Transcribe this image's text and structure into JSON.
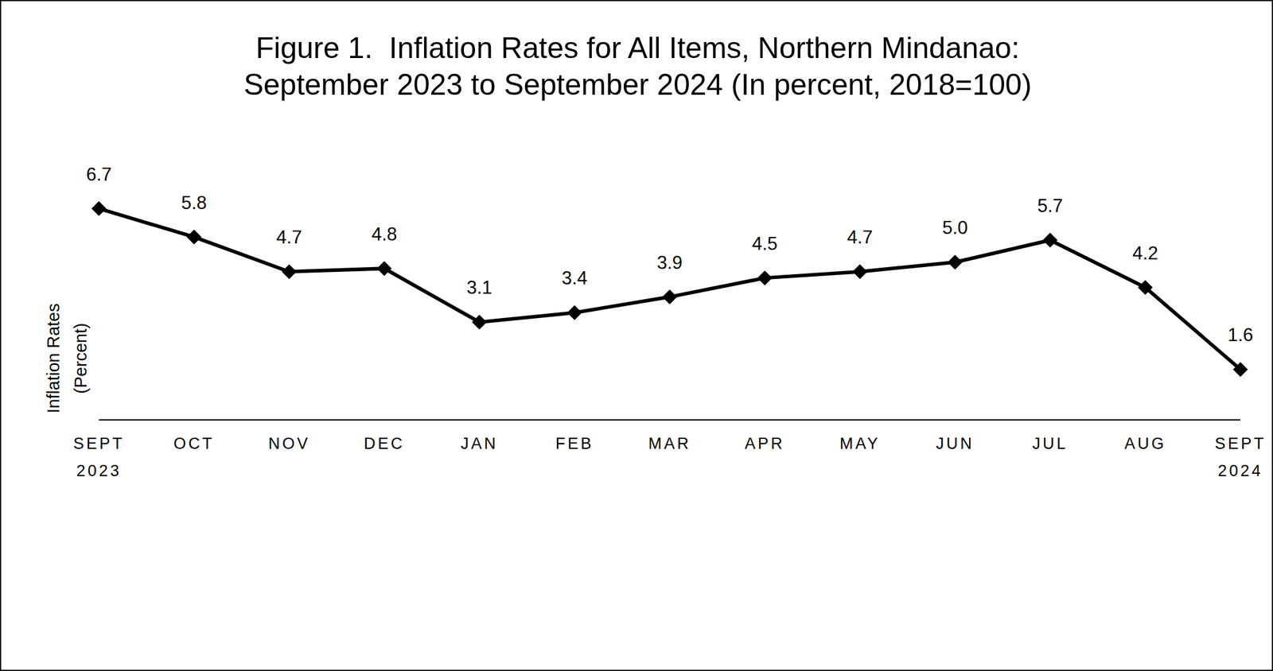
{
  "chart_data": {
    "type": "line",
    "title": "Figure 1.  Inflation Rates for All Items, Northern Mindanao:\nSeptember 2023 to September 2024 (In percent, 2018=100)",
    "ylabel": "Inflation Rates\n(Percent)",
    "categories": [
      "SEPT 2023",
      "OCT",
      "NOV",
      "DEC",
      "JAN",
      "FEB",
      "MAR",
      "APR",
      "MAY",
      "JUN",
      "JUL",
      "AUG",
      "SEPT 2024"
    ],
    "values": [
      6.7,
      5.8,
      4.7,
      4.8,
      3.1,
      3.4,
      3.9,
      4.5,
      4.7,
      5.0,
      5.7,
      4.2,
      1.6
    ],
    "value_labels": [
      "6.7",
      "5.8",
      "4.7",
      "4.8",
      "3.1",
      "3.4",
      "3.9",
      "4.5",
      "4.7",
      "5.0",
      "5.7",
      "4.2",
      "1.6"
    ],
    "color": "#000000",
    "marker": "diamond",
    "line_style": "solid",
    "ylim": [
      0,
      8
    ],
    "data_labels": true,
    "tick_labels": "x",
    "grid": false
  }
}
